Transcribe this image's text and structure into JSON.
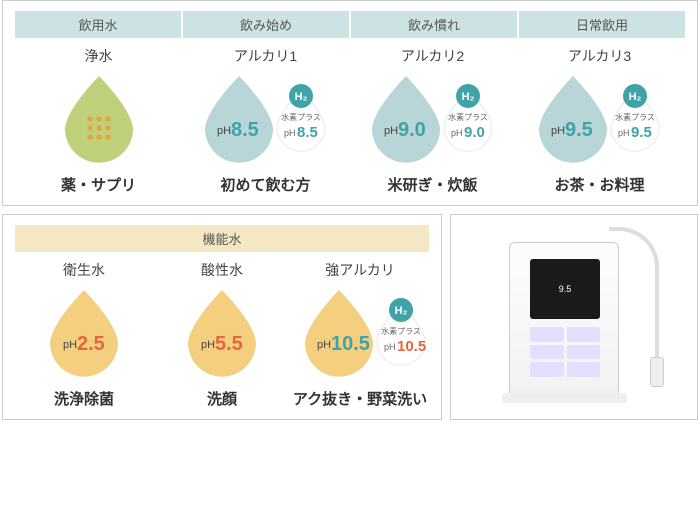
{
  "top": {
    "headers": [
      "飲用水",
      "飲み始め",
      "飲み慣れ",
      "日常飲用"
    ],
    "items": [
      {
        "type": "浄水",
        "use": "薬・サプリ",
        "drop": {
          "kind": "jousui",
          "fill": "#bed07a"
        }
      },
      {
        "type": "アルカリ1",
        "use": "初めて飲む方",
        "drop": {
          "kind": "alkali",
          "fill": "#b8d6d7",
          "ph_label": "pH",
          "ph_value": "8.5",
          "ph_color": "#3fa3a7",
          "h2_badge": "H₂",
          "h2_sub": "水素プラス",
          "h2_ph": "8.5"
        }
      },
      {
        "type": "アルカリ2",
        "use": "米研ぎ・炊飯",
        "drop": {
          "kind": "alkali",
          "fill": "#b8d6d7",
          "ph_label": "pH",
          "ph_value": "9.0",
          "ph_color": "#3fa3a7",
          "h2_badge": "H₂",
          "h2_sub": "水素プラス",
          "h2_ph": "9.0"
        }
      },
      {
        "type": "アルカリ3",
        "use": "お茶・お料理",
        "drop": {
          "kind": "alkali",
          "fill": "#b8d6d7",
          "ph_label": "pH",
          "ph_value": "9.5",
          "ph_color": "#3fa3a7",
          "h2_badge": "H₂",
          "h2_sub": "水素プラス",
          "h2_ph": "9.5"
        }
      }
    ]
  },
  "bottom": {
    "header": "機能水",
    "items": [
      {
        "type": "衛生水",
        "use": "洗浄除菌",
        "drop": {
          "kind": "acid",
          "fill": "#f4cf80",
          "ph_label": "pH",
          "ph_value": "2.5",
          "ph_color": "#e4663f"
        }
      },
      {
        "type": "酸性水",
        "use": "洗顔",
        "drop": {
          "kind": "acid",
          "fill": "#f4cf80",
          "ph_label": "pH",
          "ph_value": "5.5",
          "ph_color": "#e4663f"
        }
      },
      {
        "type": "強アルカリ",
        "use": "アク抜き・野菜洗い",
        "drop": {
          "kind": "strong",
          "fill": "#f4cf80",
          "ph_label": "pH",
          "ph_value": "10.5",
          "ph_color": "#3fa3a7",
          "h2_badge": "H₂",
          "h2_sub": "水素プラス",
          "h2_ph": "10.5",
          "h2_ph_color": "#e4663f"
        }
      }
    ]
  },
  "product_screen": "9.5",
  "layout": {
    "top_col_width": 167,
    "bottom_col_width": 138,
    "badge_bg": "#3fa3a7",
    "sub_drop_fill": "#ffffff"
  }
}
